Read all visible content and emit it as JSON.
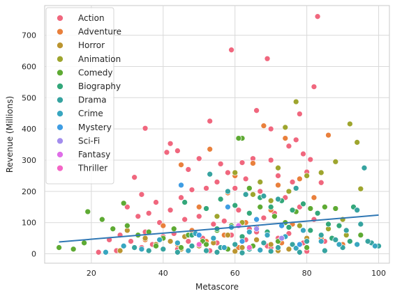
{
  "chart_data": {
    "type": "scatter",
    "xlabel": "Metascore",
    "ylabel": "Revenue (Millions)",
    "xlim": [
      7,
      103
    ],
    "ylim": [
      -30,
      795
    ],
    "x_ticks": [
      20,
      40,
      60,
      80,
      100
    ],
    "y_ticks": [
      0,
      100,
      200,
      300,
      400,
      500,
      600,
      700
    ],
    "grid": true,
    "legend_position": "top-left",
    "series": [
      {
        "name": "Action",
        "color": "#f0677e",
        "points": [
          [
            83,
            760
          ],
          [
            59,
            653
          ],
          [
            69,
            625
          ],
          [
            82,
            535
          ],
          [
            35,
            402
          ],
          [
            42,
            353
          ],
          [
            53,
            425
          ],
          [
            66,
            459
          ],
          [
            70,
            400
          ],
          [
            78,
            448
          ],
          [
            81,
            302
          ],
          [
            44,
            330
          ],
          [
            41,
            325
          ],
          [
            47,
            270
          ],
          [
            50,
            305
          ],
          [
            56,
            288
          ],
          [
            62,
            292
          ],
          [
            65,
            305
          ],
          [
            70,
            300
          ],
          [
            75,
            345
          ],
          [
            77,
            365
          ],
          [
            79,
            320
          ],
          [
            32,
            245
          ],
          [
            34,
            190
          ],
          [
            38,
            165
          ],
          [
            45,
            180
          ],
          [
            48,
            205
          ],
          [
            52,
            210
          ],
          [
            55,
            230
          ],
          [
            58,
            260
          ],
          [
            60,
            210
          ],
          [
            63,
            240
          ],
          [
            67,
            200
          ],
          [
            72,
            250
          ],
          [
            74,
            180
          ],
          [
            76,
            230
          ],
          [
            80,
            262
          ],
          [
            84,
            228
          ],
          [
            30,
            150
          ],
          [
            33,
            120
          ],
          [
            36,
            130
          ],
          [
            39,
            100
          ],
          [
            42,
            140
          ],
          [
            46,
            110
          ],
          [
            50,
            120
          ],
          [
            54,
            95
          ],
          [
            57,
            105
          ],
          [
            61,
            140
          ],
          [
            64,
            80
          ],
          [
            68,
            115
          ],
          [
            71,
            130
          ],
          [
            73,
            90
          ],
          [
            78,
            150
          ],
          [
            82,
            110
          ],
          [
            25,
            45
          ],
          [
            28,
            60
          ],
          [
            31,
            40
          ],
          [
            35,
            70
          ],
          [
            37,
            30
          ],
          [
            40,
            55
          ],
          [
            43,
            65
          ],
          [
            47,
            40
          ],
          [
            51,
            50
          ],
          [
            55,
            35
          ],
          [
            59,
            60
          ],
          [
            63,
            45
          ],
          [
            66,
            70
          ],
          [
            69,
            25
          ],
          [
            72,
            50
          ],
          [
            75,
            65
          ],
          [
            79,
            35
          ],
          [
            85,
            40
          ],
          [
            22,
            5
          ],
          [
            27,
            10
          ],
          [
            34,
            20
          ],
          [
            44,
            15
          ],
          [
            53,
            10
          ],
          [
            62,
            5
          ],
          [
            70,
            20
          ],
          [
            80,
            8
          ]
        ]
      },
      {
        "name": "Adventure",
        "color": "#e9803c",
        "points": [
          [
            53,
            335
          ],
          [
            68,
            410
          ],
          [
            86,
            380
          ],
          [
            74,
            370
          ],
          [
            65,
            290
          ],
          [
            60,
            250
          ],
          [
            45,
            285
          ],
          [
            58,
            195
          ],
          [
            72,
            220
          ],
          [
            78,
            240
          ],
          [
            82,
            180
          ],
          [
            50,
            150
          ],
          [
            55,
            120
          ],
          [
            63,
            100
          ],
          [
            70,
            140
          ],
          [
            40,
            90
          ],
          [
            48,
            75
          ],
          [
            57,
            60
          ],
          [
            66,
            85
          ],
          [
            76,
            95
          ],
          [
            35,
            45
          ],
          [
            44,
            30
          ],
          [
            52,
            40
          ],
          [
            61,
            20
          ],
          [
            73,
            35
          ],
          [
            84,
            50
          ],
          [
            90,
            30
          ]
        ]
      },
      {
        "name": "Horror",
        "color": "#bb9530",
        "points": [
          [
            30,
            75
          ],
          [
            35,
            50
          ],
          [
            38,
            30
          ],
          [
            42,
            40
          ],
          [
            46,
            55
          ],
          [
            50,
            25
          ],
          [
            54,
            35
          ],
          [
            58,
            60
          ],
          [
            62,
            20
          ],
          [
            66,
            45
          ],
          [
            70,
            30
          ],
          [
            75,
            15
          ],
          [
            80,
            50
          ],
          [
            28,
            10
          ],
          [
            45,
            15
          ],
          [
            60,
            8
          ],
          [
            72,
            10
          ]
        ]
      },
      {
        "name": "Animation",
        "color": "#9ea52e",
        "points": [
          [
            77,
            487
          ],
          [
            92,
            416
          ],
          [
            94,
            357
          ],
          [
            74,
            405
          ],
          [
            72,
            275
          ],
          [
            60,
            260
          ],
          [
            67,
            230
          ],
          [
            80,
            250
          ],
          [
            84,
            260
          ],
          [
            88,
            295
          ],
          [
            95,
            208
          ],
          [
            65,
            190
          ],
          [
            70,
            170
          ],
          [
            75,
            200
          ],
          [
            85,
            150
          ],
          [
            90,
            110
          ],
          [
            55,
            120
          ],
          [
            62,
            100
          ],
          [
            78,
            90
          ],
          [
            86,
            80
          ],
          [
            91,
            60
          ]
        ]
      },
      {
        "name": "Comedy",
        "color": "#5eaa33",
        "points": [
          [
            19,
            135
          ],
          [
            29,
            162
          ],
          [
            11,
            20
          ],
          [
            15,
            15
          ],
          [
            18,
            35
          ],
          [
            23,
            110
          ],
          [
            26,
            80
          ],
          [
            30,
            90
          ],
          [
            33,
            60
          ],
          [
            36,
            70
          ],
          [
            40,
            50
          ],
          [
            43,
            80
          ],
          [
            47,
            60
          ],
          [
            51,
            40
          ],
          [
            55,
            75
          ],
          [
            59,
            90
          ],
          [
            62,
            370
          ],
          [
            61,
            370
          ],
          [
            64,
            210
          ],
          [
            67,
            150
          ],
          [
            71,
            120
          ],
          [
            74,
            100
          ],
          [
            77,
            135
          ],
          [
            81,
            145
          ],
          [
            85,
            150
          ],
          [
            88,
            145
          ],
          [
            95,
            60
          ],
          [
            38,
            25
          ],
          [
            45,
            20
          ],
          [
            52,
            30
          ],
          [
            58,
            15
          ],
          [
            65,
            25
          ],
          [
            72,
            40
          ],
          [
            80,
            20
          ]
        ]
      },
      {
        "name": "Biography",
        "color": "#33a77a",
        "points": [
          [
            46,
            165
          ],
          [
            52,
            145
          ],
          [
            56,
            175
          ],
          [
            60,
            155
          ],
          [
            64,
            130
          ],
          [
            67,
            180
          ],
          [
            70,
            150
          ],
          [
            73,
            170
          ],
          [
            76,
            140
          ],
          [
            79,
            160
          ],
          [
            83,
            130
          ],
          [
            86,
            95
          ],
          [
            89,
            90
          ],
          [
            93,
            150
          ],
          [
            48,
            60
          ],
          [
            55,
            80
          ],
          [
            62,
            55
          ],
          [
            69,
            70
          ],
          [
            75,
            85
          ],
          [
            81,
            75
          ],
          [
            87,
            50
          ],
          [
            92,
            40
          ]
        ]
      },
      {
        "name": "Drama",
        "color": "#36a3a0",
        "points": [
          [
            53,
            255
          ],
          [
            58,
            200
          ],
          [
            63,
            190
          ],
          [
            68,
            185
          ],
          [
            72,
            175
          ],
          [
            77,
            210
          ],
          [
            96,
            275
          ],
          [
            94,
            140
          ],
          [
            98,
            35
          ],
          [
            100,
            25
          ],
          [
            97,
            40
          ],
          [
            95,
            95
          ],
          [
            91,
            75
          ],
          [
            88,
            45
          ],
          [
            84,
            60
          ],
          [
            80,
            40
          ],
          [
            76,
            30
          ],
          [
            72,
            20
          ],
          [
            68,
            35
          ],
          [
            64,
            15
          ],
          [
            60,
            30
          ],
          [
            56,
            20
          ],
          [
            52,
            10
          ],
          [
            48,
            25
          ],
          [
            44,
            5
          ],
          [
            40,
            15
          ],
          [
            36,
            10
          ],
          [
            32,
            20
          ],
          [
            90,
            20
          ],
          [
            85,
            10
          ],
          [
            78,
            5
          ],
          [
            70,
            8
          ],
          [
            62,
            3
          ],
          [
            55,
            5
          ]
        ]
      },
      {
        "name": "Crime",
        "color": "#38a6c0",
        "points": [
          [
            24,
            5
          ],
          [
            34,
            15
          ],
          [
            44,
            35
          ],
          [
            54,
            50
          ],
          [
            64,
            70
          ],
          [
            74,
            55
          ],
          [
            84,
            40
          ],
          [
            94,
            30
          ],
          [
            29,
            25
          ],
          [
            39,
            45
          ],
          [
            49,
            65
          ],
          [
            59,
            85
          ],
          [
            69,
            60
          ],
          [
            79,
            75
          ],
          [
            89,
            30
          ],
          [
            99,
            25
          ],
          [
            47,
            10
          ],
          [
            57,
            20
          ],
          [
            67,
            12
          ],
          [
            77,
            18
          ]
        ]
      },
      {
        "name": "Mystery",
        "color": "#3f9de3",
        "points": [
          [
            45,
            220
          ],
          [
            58,
            150
          ],
          [
            66,
            110
          ],
          [
            73,
            90
          ],
          [
            50,
            60
          ],
          [
            62,
            40
          ],
          [
            78,
            30
          ]
        ]
      },
      {
        "name": "Sci-Fi",
        "color": "#a38ded",
        "points": [
          [
            66,
            80
          ],
          [
            73,
            50
          ]
        ]
      },
      {
        "name": "Fantasy",
        "color": "#df6ee8",
        "points": [
          [
            61,
            90
          ]
        ]
      },
      {
        "name": "Thriller",
        "color": "#f466c6",
        "points": [
          [
            50,
            30
          ],
          [
            64,
            20
          ]
        ]
      }
    ],
    "trendline": {
      "color": "#2f77b4",
      "x": [
        11,
        100
      ],
      "y": [
        38,
        124
      ]
    }
  }
}
